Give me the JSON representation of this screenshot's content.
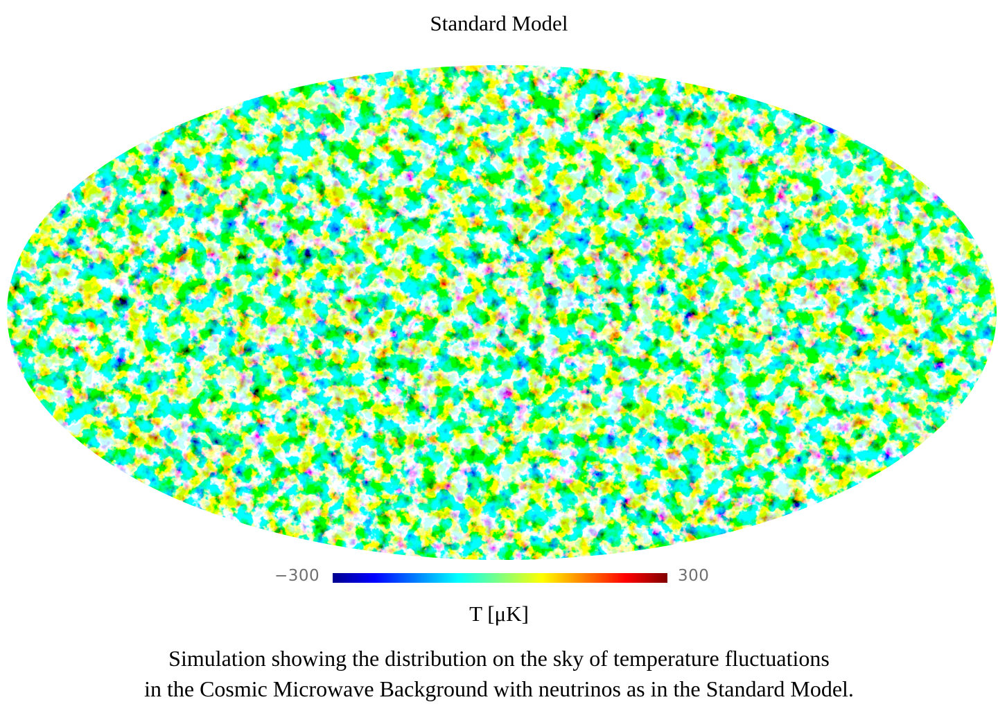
{
  "title": "Standard Model",
  "colorbar": {
    "min_label": "−300",
    "max_label": "300",
    "min_value": -300,
    "max_value": 300,
    "colors": [
      "#00008f",
      "#0000ff",
      "#0080ff",
      "#00ffff",
      "#80ff80",
      "#ffff00",
      "#ff8000",
      "#ff0000",
      "#800000"
    ]
  },
  "unit_label": "T [μK]",
  "caption": {
    "line1": "Simulation showing the distribution on the sky of temperature fluctuations",
    "line2": "in the Cosmic Microwave Background with neutrinos as in the Standard Model."
  }
}
